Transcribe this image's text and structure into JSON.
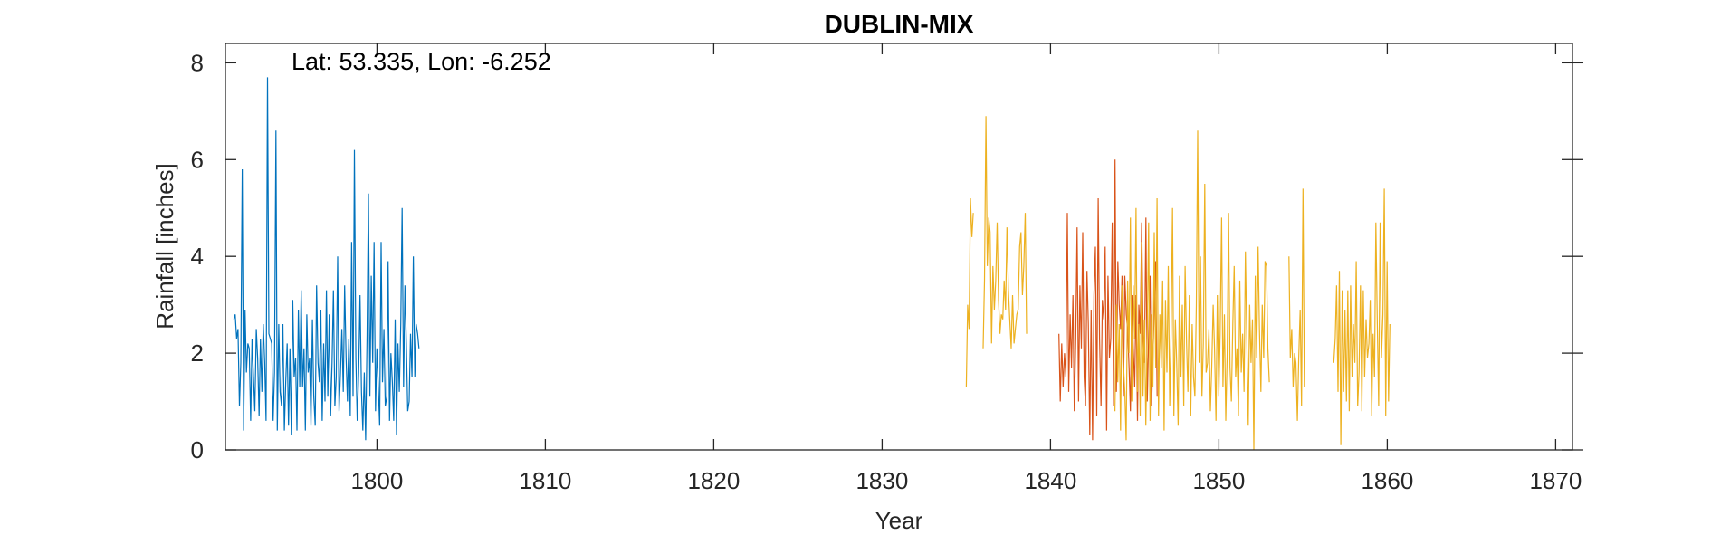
{
  "chart_data": {
    "type": "line",
    "title": "DUBLIN-MIX",
    "annotation": "Lat: 53.335, Lon: -6.252",
    "xlabel": "Year",
    "ylabel": "Rainfall [inches]",
    "xlim": [
      1791,
      1871
    ],
    "ylim": [
      0,
      8.4
    ],
    "xticks": [
      1800,
      1810,
      1820,
      1830,
      1840,
      1850,
      1860,
      1870
    ],
    "yticks": [
      0,
      2,
      4,
      6,
      8
    ],
    "grid": false,
    "series": [
      {
        "color": "#0072BD",
        "x_start": 1791.5,
        "x_step": 0.0833,
        "values": [
          2.7,
          2.8,
          2.3,
          2.5,
          0.9,
          1.8,
          5.8,
          0.4,
          2.9,
          1.6,
          2.2,
          2.1,
          0.6,
          2.3,
          1.5,
          0.8,
          2.5,
          1.9,
          0.7,
          2.3,
          1.2,
          2.6,
          1.8,
          0.6,
          7.7,
          2.4,
          2.3,
          2.2,
          0.6,
          1.6,
          6.6,
          0.4,
          2.6,
          1.2,
          0.9,
          2.6,
          0.4,
          1.4,
          2.2,
          0.5,
          2.1,
          0.3,
          3.1,
          1.5,
          1.9,
          0.4,
          2.9,
          1.3,
          3.3,
          1.3,
          2.1,
          0.4,
          2.8,
          1.6,
          1.9,
          0.5,
          2.7,
          1.1,
          0.5,
          3.4,
          1.8,
          1.4,
          2.9,
          0.6,
          2.2,
          1.0,
          3.3,
          1.1,
          2.8,
          0.7,
          1.8,
          3.3,
          0.9,
          1.5,
          4.0,
          0.8,
          1.6,
          2.5,
          1.2,
          3.4,
          1.9,
          1.0,
          2.3,
          0.7,
          4.3,
          1.1,
          6.2,
          1.9,
          0.6,
          1.6,
          3.2,
          1.2,
          0.4,
          1.6,
          0.2,
          2.4,
          5.3,
          1.1,
          3.6,
          1.8,
          4.3,
          0.8,
          2.1,
          1.3,
          0.5,
          4.3,
          1.4,
          2.5,
          0.9,
          1.1,
          3.9,
          0.6,
          2.0,
          1.4,
          0.6,
          2.7,
          0.3,
          2.2,
          1.2,
          2.6,
          5.0,
          1.3,
          3.4,
          2.2,
          0.8,
          1.0,
          2.4,
          1.5,
          4.0,
          1.5,
          2.6,
          2.4,
          2.1
        ]
      },
      {
        "color": "#D95319",
        "x_start": 1840.5,
        "x_step": 0.0833,
        "values": [
          2.4,
          1.0,
          2.2,
          1.3,
          2.0,
          1.5,
          4.9,
          1.2,
          2.8,
          1.7,
          3.2,
          0.8,
          2.3,
          4.6,
          1.0,
          3.4,
          2.1,
          4.5,
          1.5,
          0.9,
          3.7,
          2.6,
          0.3,
          2.9,
          0.2,
          3.2,
          4.2,
          0.7,
          5.2,
          2.3,
          0.9,
          3.1,
          2.7,
          4.2,
          0.4,
          3.6,
          1.9,
          2.3,
          4.7,
          0.9,
          6.0,
          1.2,
          3.9,
          3.0,
          2.5,
          3.6,
          1.1,
          3.6,
          2.8,
          2.5,
          1.7,
          0.8,
          3.2,
          2.1,
          1.3,
          3.2,
          0.6,
          3.0,
          2.4,
          4.7,
          2.4,
          1.8,
          4.8,
          1.0,
          2.4,
          3.6,
          0.9,
          1.9,
          3.0,
          3.9,
          1.1
        ]
      },
      {
        "color": "#EDB120",
        "x_start": 1835.0,
        "x_step": 0.0833,
        "values": [
          1.3,
          3.0,
          2.5,
          5.2,
          4.4,
          4.9,
          null,
          null,
          null,
          null,
          null,
          null,
          2.1,
          3.5,
          6.9,
          3.8,
          4.8,
          4.5,
          2.2,
          3.8,
          2.9,
          3.5,
          4.7,
          3.1,
          2.4,
          2.8,
          2.7,
          3.5,
          2.9,
          4.6,
          3.3,
          2.7,
          2.1,
          3.2,
          2.2,
          2.5,
          2.8,
          2.9,
          4.2,
          4.5,
          3.2,
          3.8,
          4.9,
          2.4,
          null,
          null,
          null,
          null,
          null,
          null,
          null,
          null,
          null,
          null,
          null,
          null,
          null,
          null,
          null,
          null,
          null,
          null,
          null,
          null,
          null,
          null,
          null,
          null,
          null,
          null,
          null,
          null,
          null,
          null,
          null,
          null,
          null,
          null,
          null,
          null,
          null,
          null,
          null,
          null,
          null,
          null,
          null,
          null,
          null,
          null,
          null,
          null,
          null,
          null,
          null,
          null,
          null,
          null,
          null,
          null,
          null,
          null,
          null,
          null,
          null,
          null,
          0.8,
          3.0,
          1.4,
          2.6,
          0.4,
          3.4,
          1.8,
          1.2,
          0.2,
          3.5,
          2.0,
          4.8,
          1.0,
          3.4,
          2.3,
          5.0,
          1.2,
          2.6,
          0.7,
          4.3,
          1.1,
          2.7,
          0.5,
          2.4,
          4.7,
          0.6,
          2.8,
          1.3,
          4.5,
          1.7,
          5.2,
          0.7,
          2.8,
          1.7,
          3.5,
          0.4,
          3.1,
          1.6,
          3.8,
          0.9,
          2.4,
          5.0,
          0.7,
          2.7,
          1.8,
          0.5,
          3.6,
          1.5,
          3.0,
          0.9,
          3.8,
          2.2,
          1.2,
          3.2,
          0.7,
          2.6,
          1.5,
          1.1,
          3.0,
          6.6,
          1.8,
          4.0,
          1.1,
          2.2,
          5.5,
          1.6,
          1.8,
          2.5,
          0.8,
          1.7,
          3.0,
          2.1,
          0.6,
          3.2,
          1.1,
          2.4,
          4.8,
          1.3,
          2.8,
          0.6,
          2.0,
          4.9,
          1.7,
          1.0,
          2.6,
          3.8,
          1.5,
          2.1,
          0.7,
          3.5,
          1.6,
          2.4,
          1.2,
          4.1,
          2.2,
          0.5,
          3.0,
          1.8,
          2.7,
          0.0,
          3.6,
          1.9,
          4.2,
          2.5,
          1.2,
          3.0,
          1.9,
          3.9,
          3.8,
          2.1,
          1.4,
          null,
          null,
          null,
          null,
          null,
          null,
          null,
          null,
          null,
          null,
          null,
          null,
          null,
          4.0,
          1.9,
          2.5,
          1.3,
          2.0,
          1.8,
          0.6,
          1.9,
          2.9,
          0.9,
          5.4,
          1.3,
          null,
          null,
          null,
          null,
          null,
          null,
          null,
          null,
          null,
          null,
          null,
          null,
          null,
          null,
          null,
          null,
          null,
          null,
          null,
          null,
          1.8,
          2.3,
          3.4,
          1.2,
          3.7,
          0.1,
          3.3,
          1.2,
          2.9,
          1.0,
          3.3,
          0.8,
          3.4,
          1.5,
          2.6,
          1.8,
          3.9,
          0.9,
          1.6,
          3.4,
          0.8,
          3.3,
          1.5,
          2.7,
          1.9,
          2.2,
          3.1,
          0.7,
          2.4,
          1.5,
          4.7,
          2.6,
          0.9,
          4.7,
          1.9,
          2.8,
          5.4,
          0.7,
          3.9,
          1.0,
          2.6
        ]
      }
    ]
  }
}
